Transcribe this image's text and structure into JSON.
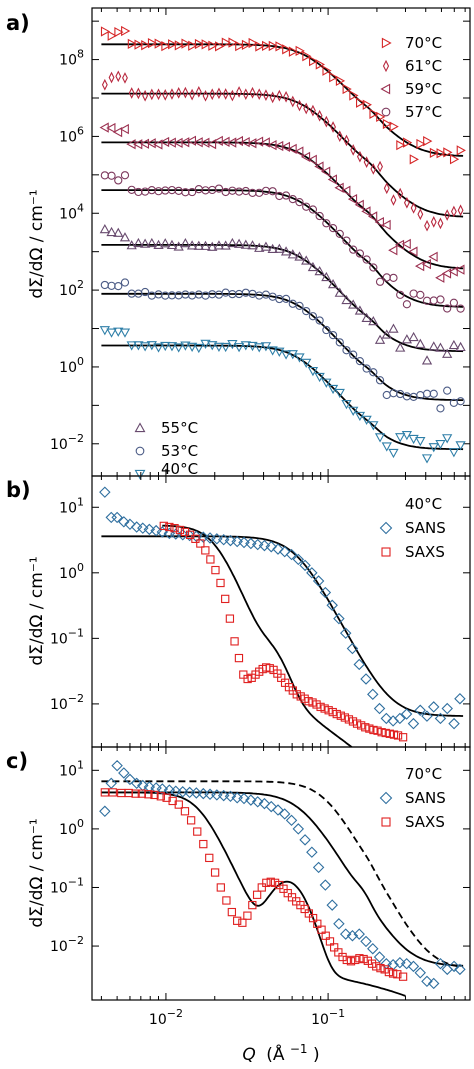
{
  "panel_letters": [
    "a)",
    "b)",
    "c)"
  ],
  "chart_data": [
    {
      "type": "scatter",
      "panel": "a)",
      "ylabel": "dΣ/dΩ / cm⁻¹",
      "xscale": "log",
      "yscale": "log",
      "xlim": [
        0.0035,
        0.75
      ],
      "ylim": [
        0.00145,
        2200000000.0
      ],
      "y_ticks": [
        {
          "v": 0.01,
          "b": "10",
          "e": "−2"
        },
        {
          "v": 1,
          "b": "10",
          "e": "0"
        },
        {
          "v": 100,
          "b": "10",
          "e": "2"
        },
        {
          "v": 10000.0,
          "b": "10",
          "e": "4"
        },
        {
          "v": 1000000.0,
          "b": "10",
          "e": "6"
        },
        {
          "v": 100000000.0,
          "b": "10",
          "e": "8"
        }
      ],
      "legend": [
        {
          "label": "70°C",
          "marker": "triangle-right",
          "position": "top-right"
        },
        {
          "label": "61°C",
          "marker": "thin-diamond",
          "position": "top-right"
        },
        {
          "label": "59°C",
          "marker": "triangle-left",
          "position": "top-right"
        },
        {
          "label": "57°C",
          "marker": "circle",
          "position": "top-right"
        },
        {
          "label": "55°C",
          "marker": "triangle-up",
          "position": "bottom-left"
        },
        {
          "label": "53°C",
          "marker": "circle",
          "position": "bottom-left"
        },
        {
          "label": "40°C",
          "marker": "triangle-down",
          "position": "bottom-left"
        }
      ],
      "series": [
        {
          "name": "70°C",
          "marker": "triangle-right",
          "color": "#d62728",
          "plateau": 250000000.0,
          "qc": 0.073,
          "n": 4.5,
          "bump": 0.9,
          "floor_rel": 0.0012
        },
        {
          "name": "61°C",
          "marker": "thin-diamond",
          "color": "#b8283e",
          "plateau": 13000000.0,
          "qc": 0.07,
          "n": 4.6,
          "bump": 0.8,
          "floor_rel": 0.0006
        },
        {
          "name": "59°C",
          "marker": "triangle-left",
          "color": "#9b3050",
          "plateau": 700000.0,
          "qc": 0.068,
          "n": 4.6,
          "bump": 0.8,
          "floor_rel": 0.0005
        },
        {
          "name": "57°C",
          "marker": "circle",
          "color": "#7e3a5e",
          "plateau": 40000.0,
          "qc": 0.067,
          "n": 4.7,
          "bump": 0.7,
          "floor_rel": 0.0009
        },
        {
          "name": "55°C",
          "marker": "triangle-up",
          "color": "#684a6e",
          "plateau": 1500.0,
          "qc": 0.066,
          "n": 4.7,
          "bump": 0.6,
          "floor_rel": 0.0017
        },
        {
          "name": "53°C",
          "marker": "circle",
          "color": "#4c5c86",
          "plateau": 80,
          "qc": 0.065,
          "n": 4.8,
          "bump": 0.5,
          "floor_rel": 0.0017
        },
        {
          "name": "40°C",
          "marker": "triangle-down",
          "color": "#2f7fa8",
          "plateau": 3.6,
          "qc": 0.064,
          "n": 4.8,
          "bump": 0.4,
          "floor_rel": 0.002
        }
      ]
    },
    {
      "type": "scatter",
      "panel": "b)",
      "ylabel": "dΣ/dΩ / cm⁻¹",
      "xscale": "log",
      "yscale": "log",
      "xlim": [
        0.0035,
        0.75
      ],
      "ylim": [
        0.0022,
        30
      ],
      "y_ticks": [
        {
          "v": 0.01,
          "b": "10",
          "e": "−2"
        },
        {
          "v": 0.1,
          "b": "10",
          "e": "−1"
        },
        {
          "v": 1,
          "b": "10",
          "e": "0"
        },
        {
          "v": 10,
          "b": "10",
          "e": "1"
        }
      ],
      "legend_title": "40°C",
      "legend": [
        {
          "label": "SANS",
          "marker": "diamond",
          "position": "top-right"
        },
        {
          "label": "SAXS",
          "marker": "square",
          "position": "top-right"
        }
      ],
      "series": [
        {
          "name": "SANS",
          "marker": "diamond",
          "color": "#2f6f9f",
          "x": [
            0.0042,
            0.0046,
            0.005,
            0.0055,
            0.006,
            0.0066,
            0.0072,
            0.0079,
            0.0087,
            0.0095,
            0.0105,
            0.0115,
            0.0127,
            0.014,
            0.0154,
            0.017,
            0.0187,
            0.0206,
            0.0227,
            0.025,
            0.0275,
            0.0303,
            0.0334,
            0.0368,
            0.0405,
            0.0446,
            0.0491,
            0.054,
            0.0595,
            0.0655,
            0.0721,
            0.0794,
            0.0874,
            0.0962,
            0.106,
            0.1166,
            0.1284,
            0.1413,
            0.1556,
            0.1713,
            0.1886,
            0.2076,
            0.2286,
            0.2517,
            0.2771,
            0.305,
            0.336,
            0.37,
            0.407,
            0.448,
            0.493,
            0.543,
            0.598,
            0.65
          ],
          "y": [
            17,
            7,
            7,
            6,
            5.5,
            5,
            4.8,
            4.6,
            4.4,
            4.2,
            4,
            3.9,
            3.8,
            3.7,
            3.6,
            3.5,
            3.4,
            3.3,
            3.2,
            3.1,
            3.0,
            2.9,
            2.8,
            2.7,
            2.6,
            2.5,
            2.3,
            2.1,
            1.9,
            1.6,
            1.3,
            1.0,
            0.75,
            0.5,
            0.32,
            0.2,
            0.12,
            0.07,
            0.04,
            0.024,
            0.014,
            0.0085,
            0.006,
            0.0055,
            0.006,
            0.007,
            0.005,
            0.008,
            0.0065,
            0.009,
            0.006,
            0.0085,
            0.005,
            0.012
          ]
        },
        {
          "name": "SAXS",
          "marker": "square",
          "color": "#e02020",
          "x": [
            0.0097,
            0.0105,
            0.0113,
            0.0122,
            0.0131,
            0.0141,
            0.0152,
            0.0163,
            0.0175,
            0.0188,
            0.0202,
            0.0217,
            0.0232,
            0.0248,
            0.0265,
            0.0282,
            0.03,
            0.0319,
            0.0338,
            0.0357,
            0.0376,
            0.0395,
            0.0415,
            0.0437,
            0.0461,
            0.0487,
            0.0514,
            0.0543,
            0.0574,
            0.0606,
            0.0641,
            0.0678,
            0.0717,
            0.0758,
            0.0802,
            0.0849,
            0.0899,
            0.0952,
            0.1008,
            0.1068,
            0.1131,
            0.1198,
            0.1269,
            0.1344,
            0.1424,
            0.1509,
            0.1599,
            0.1695,
            0.1796,
            0.1904,
            0.2018,
            0.2139,
            0.2267,
            0.2403,
            0.2548,
            0.27,
            0.29
          ],
          "y": [
            5.2,
            5.0,
            4.8,
            4.5,
            4.2,
            3.8,
            3.3,
            2.8,
            2.2,
            1.6,
            1.1,
            0.7,
            0.4,
            0.2,
            0.09,
            0.05,
            0.028,
            0.024,
            0.025,
            0.028,
            0.031,
            0.034,
            0.036,
            0.035,
            0.033,
            0.029,
            0.025,
            0.021,
            0.018,
            0.016,
            0.014,
            0.013,
            0.012,
            0.011,
            0.0105,
            0.0098,
            0.009,
            0.0085,
            0.008,
            0.0075,
            0.007,
            0.0066,
            0.0062,
            0.0058,
            0.0054,
            0.005,
            0.0047,
            0.0044,
            0.0042,
            0.004,
            0.0039,
            0.0037,
            0.0036,
            0.0035,
            0.0034,
            0.0033,
            0.0031
          ]
        }
      ]
    },
    {
      "type": "scatter",
      "panel": "c)",
      "ylabel": "dΣ/dΩ / cm⁻¹",
      "xlabel_q": "Q",
      "xlabel_unit": "(Å",
      "xlabel_exp": "−1",
      "xlabel_close": ")",
      "xscale": "log",
      "yscale": "log",
      "xlim": [
        0.0035,
        0.75
      ],
      "ylim": [
        0.0012,
        25
      ],
      "x_ticks": [
        {
          "v": 0.01,
          "b": "10",
          "e": "−2"
        },
        {
          "v": 0.1,
          "b": "10",
          "e": "−1"
        }
      ],
      "y_ticks": [
        {
          "v": 0.01,
          "b": "10",
          "e": "−2"
        },
        {
          "v": 0.1,
          "b": "10",
          "e": "−1"
        },
        {
          "v": 1,
          "b": "10",
          "e": "0"
        },
        {
          "v": 10,
          "b": "10",
          "e": "1"
        }
      ],
      "legend_title": "70°C",
      "legend": [
        {
          "label": "SANS",
          "marker": "diamond",
          "position": "top-right"
        },
        {
          "label": "SAXS",
          "marker": "square",
          "position": "top-right"
        }
      ],
      "series": [
        {
          "name": "SANS",
          "marker": "diamond",
          "color": "#2f6f9f",
          "x": [
            0.0042,
            0.0046,
            0.005,
            0.0055,
            0.006,
            0.0066,
            0.0072,
            0.0079,
            0.0087,
            0.0095,
            0.0105,
            0.0115,
            0.0127,
            0.014,
            0.0154,
            0.017,
            0.0187,
            0.0206,
            0.0227,
            0.025,
            0.0275,
            0.0303,
            0.0334,
            0.0368,
            0.0405,
            0.0446,
            0.0491,
            0.054,
            0.0595,
            0.0655,
            0.0721,
            0.0794,
            0.0874,
            0.0962,
            0.106,
            0.1166,
            0.1284,
            0.1413,
            0.1556,
            0.1713,
            0.1886,
            0.2076,
            0.2286,
            0.2517,
            0.2771,
            0.305,
            0.336,
            0.37,
            0.407,
            0.448,
            0.493,
            0.543,
            0.598,
            0.65
          ],
          "y": [
            2,
            6,
            12,
            9,
            7,
            6,
            5.5,
            5.2,
            5,
            4.8,
            4.6,
            4.4,
            4.3,
            4.2,
            4.1,
            4.0,
            3.9,
            3.8,
            3.7,
            3.6,
            3.4,
            3.3,
            3.1,
            2.9,
            2.7,
            2.4,
            2.1,
            1.8,
            1.4,
            1.0,
            0.65,
            0.4,
            0.22,
            0.11,
            0.05,
            0.024,
            0.016,
            0.015,
            0.016,
            0.012,
            0.009,
            0.0065,
            0.005,
            0.0048,
            0.0052,
            0.005,
            0.0045,
            0.0035,
            0.0025,
            0.0023,
            0.005,
            0.004,
            0.0045,
            0.004
          ]
        },
        {
          "name": "SAXS",
          "marker": "square",
          "color": "#e02020",
          "x": [
            0.0042,
            0.0047,
            0.0053,
            0.0059,
            0.0065,
            0.0071,
            0.0078,
            0.0085,
            0.0093,
            0.0101,
            0.011,
            0.012,
            0.0131,
            0.0143,
            0.0156,
            0.017,
            0.0185,
            0.0201,
            0.0218,
            0.0236,
            0.0255,
            0.0275,
            0.0296,
            0.0318,
            0.0341,
            0.0365,
            0.039,
            0.0416,
            0.0443,
            0.0471,
            0.05,
            0.0531,
            0.0564,
            0.0599,
            0.0636,
            0.0675,
            0.0717,
            0.0761,
            0.0808,
            0.0858,
            0.0911,
            0.0967,
            0.1027,
            0.109,
            0.1157,
            0.1228,
            0.1304,
            0.1384,
            0.147,
            0.156,
            0.1656,
            0.1758,
            0.1866,
            0.1981,
            0.2103,
            0.2233,
            0.2371,
            0.2517,
            0.2672,
            0.29
          ],
          "y": [
            4.2,
            4.2,
            4.1,
            4.1,
            4.0,
            4.0,
            3.9,
            3.8,
            3.6,
            3.4,
            3.0,
            2.6,
            2.0,
            1.4,
            0.9,
            0.55,
            0.32,
            0.18,
            0.1,
            0.06,
            0.038,
            0.027,
            0.025,
            0.033,
            0.05,
            0.075,
            0.1,
            0.12,
            0.125,
            0.12,
            0.11,
            0.095,
            0.08,
            0.068,
            0.058,
            0.05,
            0.043,
            0.036,
            0.03,
            0.024,
            0.019,
            0.015,
            0.012,
            0.0095,
            0.0078,
            0.0065,
            0.0058,
            0.0055,
            0.0058,
            0.0062,
            0.006,
            0.0056,
            0.005,
            0.0045,
            0.0042,
            0.004,
            0.0036,
            0.0034,
            0.0033,
            0.003
          ]
        }
      ]
    }
  ]
}
